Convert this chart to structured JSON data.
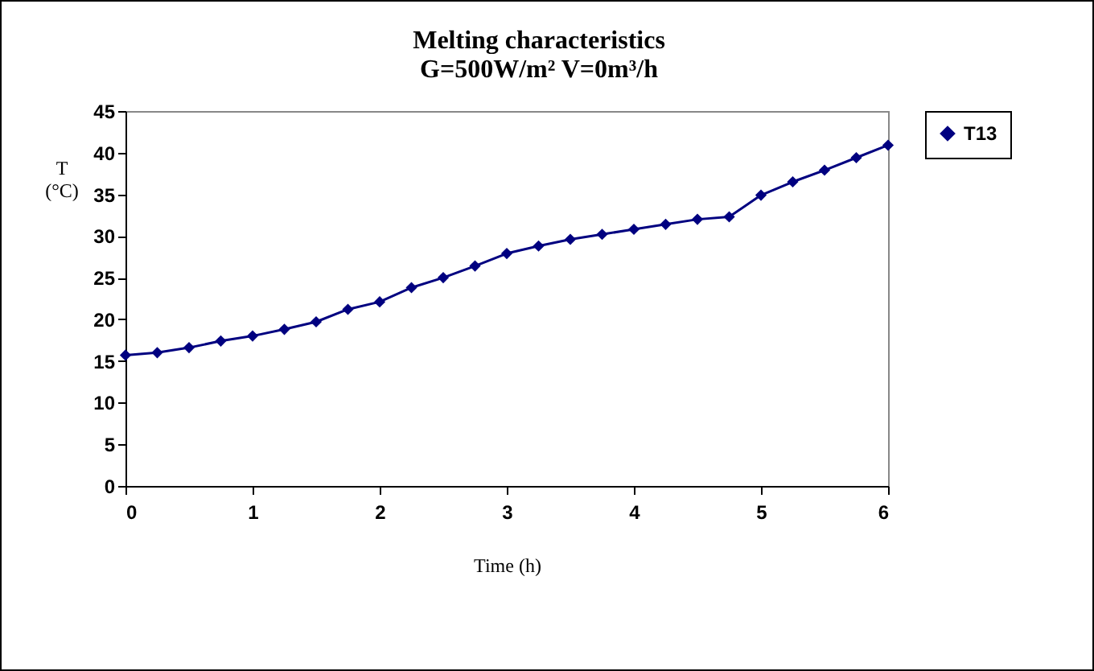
{
  "chart_data": {
    "type": "line",
    "title": "Melting  characteristics",
    "subtitle": "G=500W/m² V=0m³/h",
    "xlabel": "Time (h)",
    "ylabel": "T (°C)",
    "x": [
      0,
      0.25,
      0.5,
      0.75,
      1,
      1.25,
      1.5,
      1.75,
      2,
      2.25,
      2.5,
      2.75,
      3,
      3.25,
      3.5,
      3.75,
      4,
      4.25,
      4.5,
      4.75,
      5,
      5.25,
      5.5,
      5.75,
      6
    ],
    "series": [
      {
        "name": "T13",
        "color": "#000080",
        "values": [
          15.7,
          16.0,
          16.6,
          17.4,
          18.0,
          18.8,
          19.7,
          21.2,
          22.1,
          23.8,
          25.0,
          26.4,
          27.9,
          28.8,
          29.6,
          30.2,
          30.8,
          31.4,
          32.0,
          32.3,
          34.9,
          36.5,
          37.9,
          39.4,
          40.9
        ]
      }
    ],
    "xlim": [
      0,
      6
    ],
    "xticks": [
      0,
      1,
      2,
      3,
      4,
      5,
      6
    ],
    "ylim": [
      0,
      45
    ],
    "yticks": [
      0,
      5,
      10,
      15,
      20,
      25,
      30,
      35,
      40,
      45
    ],
    "grid": false,
    "legend": "right",
    "marker": "diamond",
    "line_style": "solid"
  }
}
